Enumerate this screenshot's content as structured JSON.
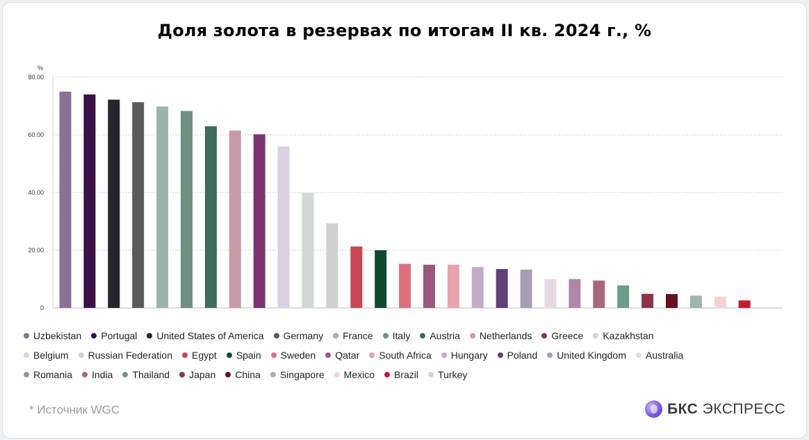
{
  "brand": {
    "name_bold": "БКС",
    "name_light": "ЭКСПРЕСС",
    "accent": "#7c5ce0"
  },
  "source_note": "*  Источник WGC",
  "chart_data": {
    "type": "bar",
    "title": "Доля золота в резервах по итогам II кв. 2024 г., %",
    "ylabel": "%",
    "ylim": [
      0,
      80
    ],
    "yticks": [
      "80.00",
      "60.00",
      "40.00",
      "20.00",
      "0"
    ],
    "yticks_values": [
      80,
      60,
      40,
      20,
      0
    ],
    "grid": true,
    "legend_position": "bottom",
    "categories": [
      "Uzbekistan",
      "Portugal",
      "United States of America",
      "Germany",
      "France",
      "Italy",
      "Austria",
      "Netherlands",
      "Greece",
      "Kazakhstan",
      "Belgium",
      "Russian Federation",
      "Egypt",
      "Spain",
      "Sweden",
      "Qatar",
      "South Africa",
      "Hungary",
      "Poland",
      "United Kingdom",
      "Australia",
      "Romania",
      "India",
      "Thailand",
      "Japan",
      "China",
      "Singapore",
      "Mexico",
      "Brazil",
      "Turkey"
    ],
    "values": [
      75.0,
      74.0,
      72.2,
      71.3,
      69.8,
      68.3,
      63.0,
      61.5,
      60.2,
      56.0,
      39.8,
      29.3,
      21.3,
      20.0,
      15.3,
      15.0,
      15.0,
      14.2,
      13.5,
      13.3,
      10.0,
      10.0,
      9.5,
      7.8,
      4.9,
      4.8,
      4.3,
      3.9,
      2.6,
      0
    ],
    "colors": [
      "#8b7099",
      "#3a1249",
      "#25262b",
      "#5a5a5a",
      "#9cb3aa",
      "#6f9080",
      "#3e6b5a",
      "#c69ba7",
      "#7b3571",
      "#d9d1e1",
      "#cfdad6",
      "#d0d0d0",
      "#c84656",
      "#0f4b33",
      "#dd707e",
      "#99597f",
      "#e8a4ae",
      "#c6abc9",
      "#62417a",
      "#ab9cb5",
      "#e8d8e4",
      "#b087a8",
      "#a8687a",
      "#6f9a85",
      "#8f3448",
      "#680f21",
      "#9fb6ad",
      "#f6d3d3",
      "#c8192f",
      "#ecc7d1"
    ]
  }
}
